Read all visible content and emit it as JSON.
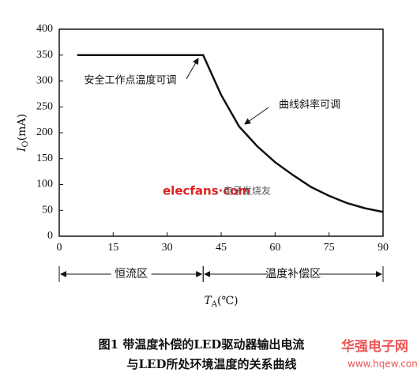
{
  "chart_data": {
    "type": "line",
    "x": [
      5,
      40,
      45,
      50,
      55,
      60,
      65,
      70,
      75,
      80,
      85,
      90
    ],
    "series": [
      {
        "color": "#111111",
        "values": [
          350,
          350,
          273,
          212,
          174,
          143,
          118,
          95,
          78,
          64,
          54,
          47
        ]
      }
    ],
    "xlim": [
      0,
      90
    ],
    "xticks": [
      0,
      15,
      30,
      45,
      60,
      75,
      90
    ],
    "ylim": [
      0,
      400
    ],
    "yticks": [
      0,
      50,
      100,
      150,
      200,
      250,
      300,
      350,
      400
    ],
    "grid": false,
    "ylabel": {
      "symbol": "I",
      "subscript": "O",
      "unit": "(mA)"
    },
    "xlabel": {
      "symbol": "T",
      "subscript": "A",
      "unit": "(℃)"
    },
    "annotations": [
      "安全工作点温度可调",
      "曲线斜率可调"
    ],
    "regions": [
      {
        "label": "恒流区",
        "from": 0,
        "to": 40
      },
      {
        "label": "温度补偿区",
        "from": 40,
        "to": 90
      }
    ],
    "caption": [
      "图1  带温度补偿的LED驱动器输出电流",
      "与LED所处环境温度的关系曲线"
    ],
    "watermarks": [
      "elecfans·com",
      "电子发烧友",
      "华强电子网",
      "www.hqew.com"
    ]
  }
}
